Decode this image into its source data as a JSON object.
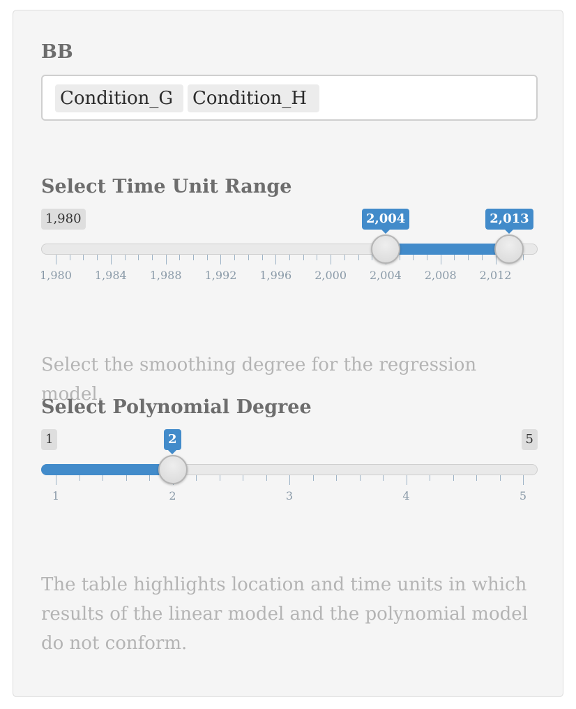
{
  "bb": {
    "label": "BB",
    "selected": [
      "Condition_G",
      "Condition_H"
    ]
  },
  "time_range": {
    "label": "Select Time Unit Range",
    "min": 1980,
    "max": 2014,
    "min_label": "1,980",
    "from": 2004,
    "to": 2013,
    "from_label": "2,004",
    "to_label": "2,013",
    "tick_labels": [
      "1,980",
      "1,984",
      "1,988",
      "1,992",
      "1,996",
      "2,000",
      "2,004",
      "2,008",
      "2,012"
    ]
  },
  "smoothing_help": "Select the smoothing degree for the regression model.",
  "poly_degree": {
    "label": "Select Polynomial Degree",
    "min": 1,
    "max": 5,
    "min_label": "1",
    "max_label": "5",
    "value": 2,
    "value_label": "2",
    "tick_labels": [
      "1",
      "2",
      "3",
      "4",
      "5"
    ]
  },
  "table_help": "The table highlights location and time units in which results of the linear model and the polynomial model do not conform.",
  "colors": {
    "accent": "#428bca",
    "panel_bg": "#f5f5f5",
    "help_text": "#b4b4b4"
  }
}
